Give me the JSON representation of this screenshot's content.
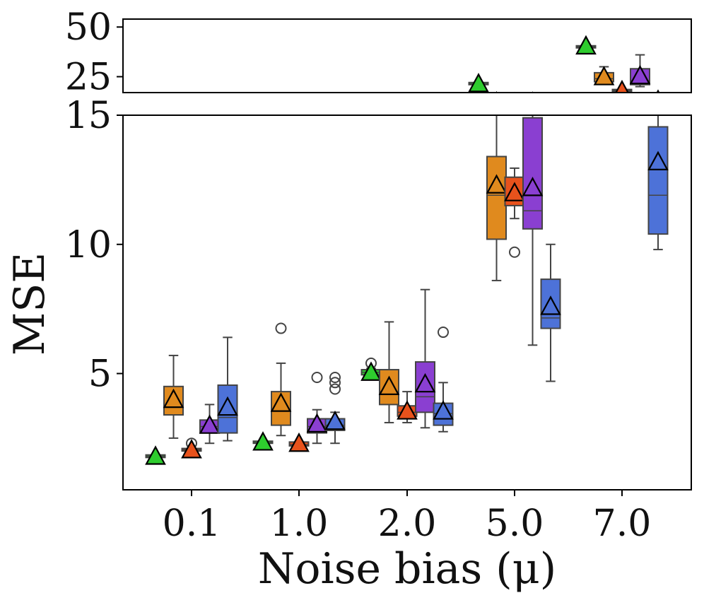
{
  "chart_data": {
    "type": "box",
    "xlabel": "Noise bias (μ)",
    "ylabel": "MSE",
    "categories": [
      "0.1",
      "1.0",
      "2.0",
      "5.0",
      "7.0"
    ],
    "top_panel": {
      "ylim": [
        17,
        54
      ],
      "yticks": [
        25,
        50
      ],
      "ytick_labels": [
        "25",
        "50"
      ]
    },
    "bottom_panel": {
      "ylim": [
        0.5,
        15
      ],
      "yticks": [
        5,
        10,
        15
      ],
      "ytick_labels": [
        "5",
        "10",
        "15"
      ]
    },
    "series": [
      {
        "name": "green",
        "color": "#2ecc2e",
        "boxes": [
          {
            "category": "0.1",
            "q1": 1.75,
            "median": 1.8,
            "q3": 1.85,
            "whisker_low": 1.75,
            "whisker_high": 1.85,
            "mean": 1.8,
            "outliers": []
          },
          {
            "category": "1.0",
            "q1": 2.3,
            "median": 2.33,
            "q3": 2.38,
            "whisker_low": 2.3,
            "whisker_high": 2.38,
            "mean": 2.35,
            "outliers": []
          },
          {
            "category": "2.0",
            "q1": 4.95,
            "median": 5.05,
            "q3": 5.15,
            "whisker_low": 4.95,
            "whisker_high": 5.2,
            "mean": 5.05,
            "outliers": [
              5.4
            ]
          },
          {
            "category": "5.0",
            "q1": 21.0,
            "median": 21.4,
            "q3": 21.8,
            "whisker_low": 21.0,
            "whisker_high": 21.8,
            "mean": 21.5,
            "outliers": []
          },
          {
            "category": "7.0",
            "q1": 39.5,
            "median": 40.0,
            "q3": 40.5,
            "whisker_low": 39.5,
            "whisker_high": 40.5,
            "mean": 40.5,
            "outliers": []
          }
        ]
      },
      {
        "name": "orange",
        "color": "#e08a1e",
        "boxes": [
          {
            "category": "0.1",
            "q1": 3.4,
            "median": 3.7,
            "q3": 4.5,
            "whisker_low": 2.5,
            "whisker_high": 5.7,
            "mean": 4.0,
            "outliers": []
          },
          {
            "category": "1.0",
            "q1": 3.0,
            "median": 3.6,
            "q3": 4.3,
            "whisker_low": 2.6,
            "whisker_high": 5.4,
            "mean": 3.85,
            "outliers": [
              6.75
            ]
          },
          {
            "category": "2.0",
            "q1": 3.8,
            "median": 4.3,
            "q3": 5.15,
            "whisker_low": 3.1,
            "whisker_high": 7.0,
            "mean": 4.5,
            "outliers": []
          },
          {
            "category": "5.0",
            "q1": 10.2,
            "median": 11.9,
            "q3": 13.4,
            "whisker_low": 8.6,
            "whisker_high": 15.5,
            "mean": 12.3,
            "outliers": []
          },
          {
            "category": "7.0",
            "q1": 22.5,
            "median": 24.0,
            "q3": 27.0,
            "whisker_low": 22.0,
            "whisker_high": 30.0,
            "mean": 25.0,
            "outliers": []
          }
        ]
      },
      {
        "name": "red",
        "color": "#e8521c",
        "boxes": [
          {
            "category": "0.1",
            "q1": 2.0,
            "median": 2.05,
            "q3": 2.1,
            "whisker_low": 2.0,
            "whisker_high": 2.1,
            "mean": 2.05,
            "outliers": [
              2.3
            ]
          },
          {
            "category": "1.0",
            "q1": 2.2,
            "median": 2.25,
            "q3": 2.35,
            "whisker_low": 2.2,
            "whisker_high": 2.35,
            "mean": 2.3,
            "outliers": []
          },
          {
            "category": "2.0",
            "q1": 3.35,
            "median": 3.5,
            "q3": 3.75,
            "whisker_low": 3.1,
            "whisker_high": 4.3,
            "mean": 3.55,
            "outliers": []
          },
          {
            "category": "5.0",
            "q1": 11.5,
            "median": 11.8,
            "q3": 12.6,
            "whisker_low": 11.0,
            "whisker_high": 12.95,
            "mean": 12.0,
            "outliers": [
              9.7
            ]
          },
          {
            "category": "7.0",
            "q1": 17.5,
            "median": 18.0,
            "q3": 18.5,
            "whisker_low": 17.5,
            "whisker_high": 18.5,
            "mean": 18.0,
            "outliers": []
          }
        ]
      },
      {
        "name": "purple",
        "color": "#8a3fd1",
        "boxes": [
          {
            "category": "0.1",
            "q1": 2.7,
            "median": 2.95,
            "q3": 3.2,
            "whisker_low": 2.3,
            "whisker_high": 3.8,
            "mean": 3.0,
            "outliers": []
          },
          {
            "category": "1.0",
            "q1": 2.7,
            "median": 2.95,
            "q3": 3.25,
            "whisker_low": 2.3,
            "whisker_high": 3.6,
            "mean": 3.05,
            "outliers": [
              4.85
            ]
          },
          {
            "category": "2.0",
            "q1": 3.5,
            "median": 4.1,
            "q3": 5.45,
            "whisker_low": 2.9,
            "whisker_high": 8.25,
            "mean": 4.6,
            "outliers": []
          },
          {
            "category": "5.0",
            "q1": 10.6,
            "median": 11.3,
            "q3": 14.9,
            "whisker_low": 6.1,
            "whisker_high": 15.5,
            "mean": 12.2,
            "outliers": []
          },
          {
            "category": "7.0",
            "q1": 21.0,
            "median": 23.0,
            "q3": 29.0,
            "whisker_low": 20.0,
            "whisker_high": 36.0,
            "mean": 25.5,
            "outliers": []
          }
        ]
      },
      {
        "name": "blue",
        "color": "#4d72d8",
        "boxes": [
          {
            "category": "0.1",
            "q1": 2.7,
            "median": 3.3,
            "q3": 4.55,
            "whisker_low": 2.4,
            "whisker_high": 6.4,
            "mean": 3.7,
            "outliers": []
          },
          {
            "category": "1.0",
            "q1": 2.8,
            "median": 3.0,
            "q3": 3.25,
            "whisker_low": 2.3,
            "whisker_high": 3.5,
            "mean": 3.15,
            "outliers": [
              4.4,
              4.65,
              4.85
            ]
          },
          {
            "category": "2.0",
            "q1": 3.0,
            "median": 3.45,
            "q3": 3.85,
            "whisker_low": 2.75,
            "whisker_high": 4.65,
            "mean": 3.55,
            "outliers": [
              6.6
            ]
          },
          {
            "category": "5.0",
            "q1": 6.75,
            "median": 7.15,
            "q3": 8.65,
            "whisker_low": 4.7,
            "whisker_high": 10.0,
            "mean": 7.6,
            "outliers": []
          },
          {
            "category": "7.0",
            "q1": 10.4,
            "median": 11.9,
            "q3": 14.55,
            "whisker_low": 9.8,
            "whisker_high": 15.5,
            "mean": 13.2,
            "outliers": []
          }
        ]
      }
    ]
  }
}
